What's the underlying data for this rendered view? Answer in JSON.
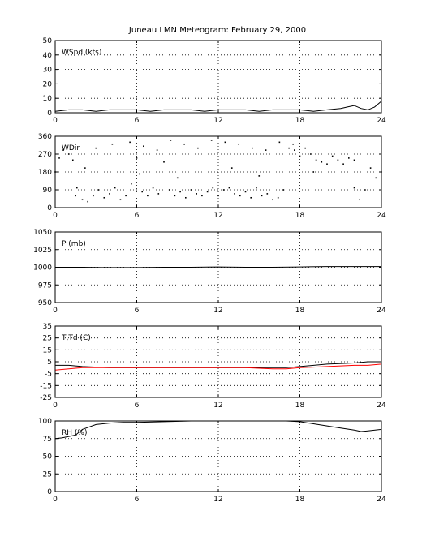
{
  "title": "Juneau LMN Meteogram:  February 29, 2000",
  "chart_data": [
    {
      "type": "line",
      "label": "WSpd (kts)",
      "xlim": [
        0,
        24
      ],
      "ylim": [
        0,
        50
      ],
      "xticks": [
        "0",
        "6",
        "12",
        "18",
        "24"
      ],
      "yticks": [
        "0",
        "10",
        "20",
        "30",
        "40",
        "50"
      ],
      "grid": true,
      "series": [
        {
          "color": "#000000",
          "x": [
            0,
            1,
            2,
            3,
            4,
            5,
            6,
            7,
            8,
            9,
            10,
            11,
            12,
            13,
            14,
            15,
            16,
            17,
            18,
            19,
            20,
            21,
            21.5,
            22,
            22.5,
            23,
            23.5,
            24
          ],
          "y": [
            1,
            2,
            2,
            1,
            2,
            2,
            2,
            1,
            2,
            2,
            2,
            1,
            2,
            2,
            2,
            1,
            2,
            2,
            2,
            1,
            2,
            3,
            4,
            5,
            3,
            2,
            4,
            8
          ]
        }
      ]
    },
    {
      "type": "scatter",
      "label": "WDir",
      "xlim": [
        0,
        24
      ],
      "ylim": [
        0,
        360
      ],
      "xticks": [
        "0",
        "6",
        "12",
        "18",
        "24"
      ],
      "yticks": [
        "0",
        "90",
        "180",
        "270",
        "360"
      ],
      "grid": true,
      "series": [
        {
          "color": "#000000",
          "x": [
            0,
            0.3,
            0.6,
            1,
            1.3,
            1.6,
            2,
            2.4,
            2.8,
            3.2,
            3.6,
            4,
            4.4,
            4.8,
            5.2,
            5.6,
            6,
            6.4,
            6.8,
            7.2,
            7.6,
            8,
            8.4,
            8.8,
            9.2,
            9.6,
            10,
            10.4,
            10.8,
            11.2,
            11.6,
            12,
            12.4,
            12.8,
            13.2,
            13.6,
            14,
            14.4,
            14.8,
            15.2,
            15.6,
            16,
            16.4,
            16.8,
            17.2,
            17.6,
            18,
            18.4,
            18.8,
            19.2,
            19.6,
            20,
            20.4,
            20.8,
            21.2,
            21.6,
            22,
            22.4,
            22.8,
            23.2,
            23.6,
            24,
            1.5,
            3,
            4.2,
            5.5,
            6.5,
            7.5,
            8.5,
            9.5,
            10.5,
            11.5,
            12.5,
            13.5,
            14.5,
            15.5,
            16.5,
            17.5,
            2.2,
            6.2,
            9,
            13,
            15,
            19,
            22
          ],
          "y": [
            180,
            250,
            290,
            270,
            240,
            100,
            40,
            30,
            60,
            90,
            50,
            70,
            100,
            40,
            60,
            120,
            250,
            80,
            60,
            100,
            70,
            230,
            90,
            60,
            80,
            50,
            90,
            70,
            60,
            80,
            100,
            60,
            90,
            100,
            70,
            60,
            80,
            50,
            100,
            60,
            70,
            40,
            50,
            90,
            300,
            290,
            260,
            300,
            270,
            240,
            230,
            220,
            260,
            240,
            220,
            250,
            100,
            40,
            90,
            200,
            150,
            180,
            60,
            300,
            320,
            330,
            310,
            290,
            340,
            320,
            300,
            340,
            330,
            320,
            300,
            290,
            330,
            320,
            200,
            170,
            150,
            200,
            160,
            180,
            240
          ]
        }
      ]
    },
    {
      "type": "line",
      "label": "P (mb)",
      "xlim": [
        0,
        24
      ],
      "ylim": [
        950,
        1050
      ],
      "xticks": [
        "0",
        "6",
        "12",
        "18",
        "24"
      ],
      "yticks": [
        "950",
        "975",
        "1000",
        "1025",
        "1050"
      ],
      "grid": true,
      "series": [
        {
          "color": "#000000",
          "x": [
            0,
            2,
            4,
            6,
            8,
            10,
            12,
            14,
            16,
            18,
            20,
            22,
            24
          ],
          "y": [
            1000,
            1000,
            999.5,
            999.5,
            1000,
            1000,
            1000.5,
            1000,
            1000,
            1000.5,
            1001,
            1001,
            1001
          ]
        }
      ]
    },
    {
      "type": "line",
      "label": "T,Td (C)",
      "xlim": [
        0,
        24
      ],
      "ylim": [
        -25,
        35
      ],
      "xticks": [
        "0",
        "6",
        "12",
        "18",
        "24"
      ],
      "yticks": [
        "-25",
        "-15",
        "-5",
        "5",
        "15",
        "25",
        "35"
      ],
      "grid": true,
      "series": [
        {
          "color": "#000000",
          "x": [
            0,
            1,
            2,
            4,
            6,
            8,
            10,
            12,
            14,
            16,
            17,
            18,
            20,
            22,
            23,
            24
          ],
          "y": [
            2,
            2,
            1,
            0,
            0,
            0,
            0,
            0,
            0,
            0,
            0,
            1,
            3,
            4,
            5,
            5
          ]
        },
        {
          "color": "#ff0000",
          "x": [
            0,
            1,
            2,
            4,
            6,
            8,
            10,
            12,
            14,
            16,
            17,
            18,
            20,
            22,
            23,
            24
          ],
          "y": [
            -2,
            -1,
            0,
            0,
            0,
            0,
            0,
            0,
            0,
            -1,
            -1,
            0,
            1,
            2,
            2,
            3
          ]
        }
      ]
    },
    {
      "type": "line",
      "label": "RH (%)",
      "xlim": [
        0,
        24
      ],
      "ylim": [
        0,
        100
      ],
      "xticks": [
        "0",
        "6",
        "12",
        "18",
        "24"
      ],
      "yticks": [
        "0",
        "25",
        "50",
        "75",
        "100"
      ],
      "grid": true,
      "series": [
        {
          "color": "#000000",
          "x": [
            0,
            0.5,
            1,
            1.5,
            2,
            3,
            4,
            5,
            6,
            8,
            10,
            12,
            14,
            16,
            17,
            18,
            19,
            20,
            21,
            22,
            22.5,
            23,
            24
          ],
          "y": [
            75,
            76,
            78,
            80,
            88,
            95,
            97,
            98,
            98,
            99,
            100,
            100,
            100,
            100,
            100,
            99,
            96,
            93,
            90,
            87,
            85,
            86,
            88
          ]
        }
      ]
    }
  ]
}
